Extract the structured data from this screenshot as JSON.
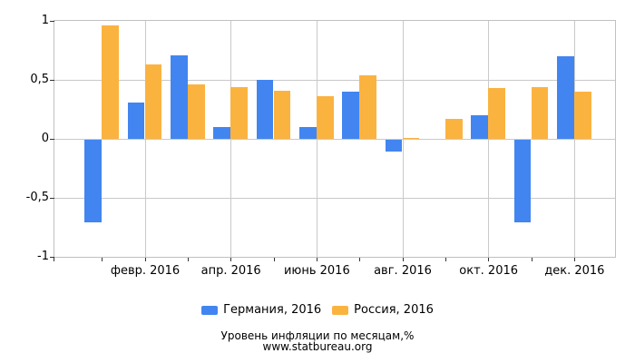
{
  "chart_data": {
    "type": "bar",
    "title": "",
    "months_count": 12,
    "x_axis": {
      "tick_labels": [
        "февр. 2016",
        "апр. 2016",
        "июнь 2016",
        "авг. 2016",
        "окт. 2016",
        "дек. 2016"
      ],
      "labeled_month_indices": [
        1,
        3,
        5,
        7,
        9,
        11
      ]
    },
    "y_axis": {
      "min": -1,
      "max": 1,
      "ticks": [
        {
          "value": 1,
          "label": "1"
        },
        {
          "value": 0.5,
          "label": "0,5"
        },
        {
          "value": 0,
          "label": "0"
        },
        {
          "value": -0.5,
          "label": "-0,5"
        },
        {
          "value": -1,
          "label": "-1"
        }
      ]
    },
    "series": [
      {
        "name": "Германия, 2016",
        "key": "germany",
        "color": "#4285F0",
        "values": [
          -0.7,
          0.31,
          0.71,
          0.1,
          0.5,
          0.1,
          0.4,
          -0.1,
          0.0,
          0.2,
          -0.7,
          0.7
        ]
      },
      {
        "name": "Россия, 2016",
        "key": "russia",
        "color": "#FBB340",
        "values": [
          0.96,
          0.63,
          0.46,
          0.44,
          0.41,
          0.36,
          0.54,
          0.01,
          0.17,
          0.43,
          0.44,
          0.4
        ]
      }
    ],
    "grid": true,
    "legend_position": "bottom"
  },
  "footer": {
    "line1": "Уровень инфляции по месяцам,%",
    "line2": "www.statbureau.org"
  },
  "colors": {
    "grid": "#c9c9c9",
    "axis_tick": "#333333",
    "text": "#000000",
    "background": "#ffffff"
  }
}
